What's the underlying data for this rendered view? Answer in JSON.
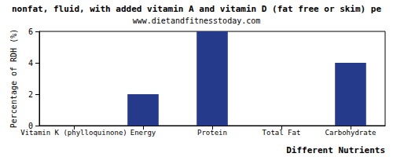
{
  "chart_data": {
    "type": "bar",
    "title": "nonfat, fluid, with added vitamin A and vitamin D (fat free or skim) pe",
    "subtitle": "www.dietandfitnesstoday.com",
    "x_label": "Different Nutrients",
    "y_label": "Percentage of RDH (%)",
    "categories": [
      "Vitamin K (phylloquinone)",
      "Energy",
      "Protein",
      "Total Fat",
      "Carbohydrate"
    ],
    "values": [
      0,
      2,
      6,
      0,
      4
    ],
    "color": "#263a8c",
    "ylim": [
      0,
      6
    ],
    "yticks": [
      0,
      2,
      4,
      6
    ],
    "grid": false
  }
}
